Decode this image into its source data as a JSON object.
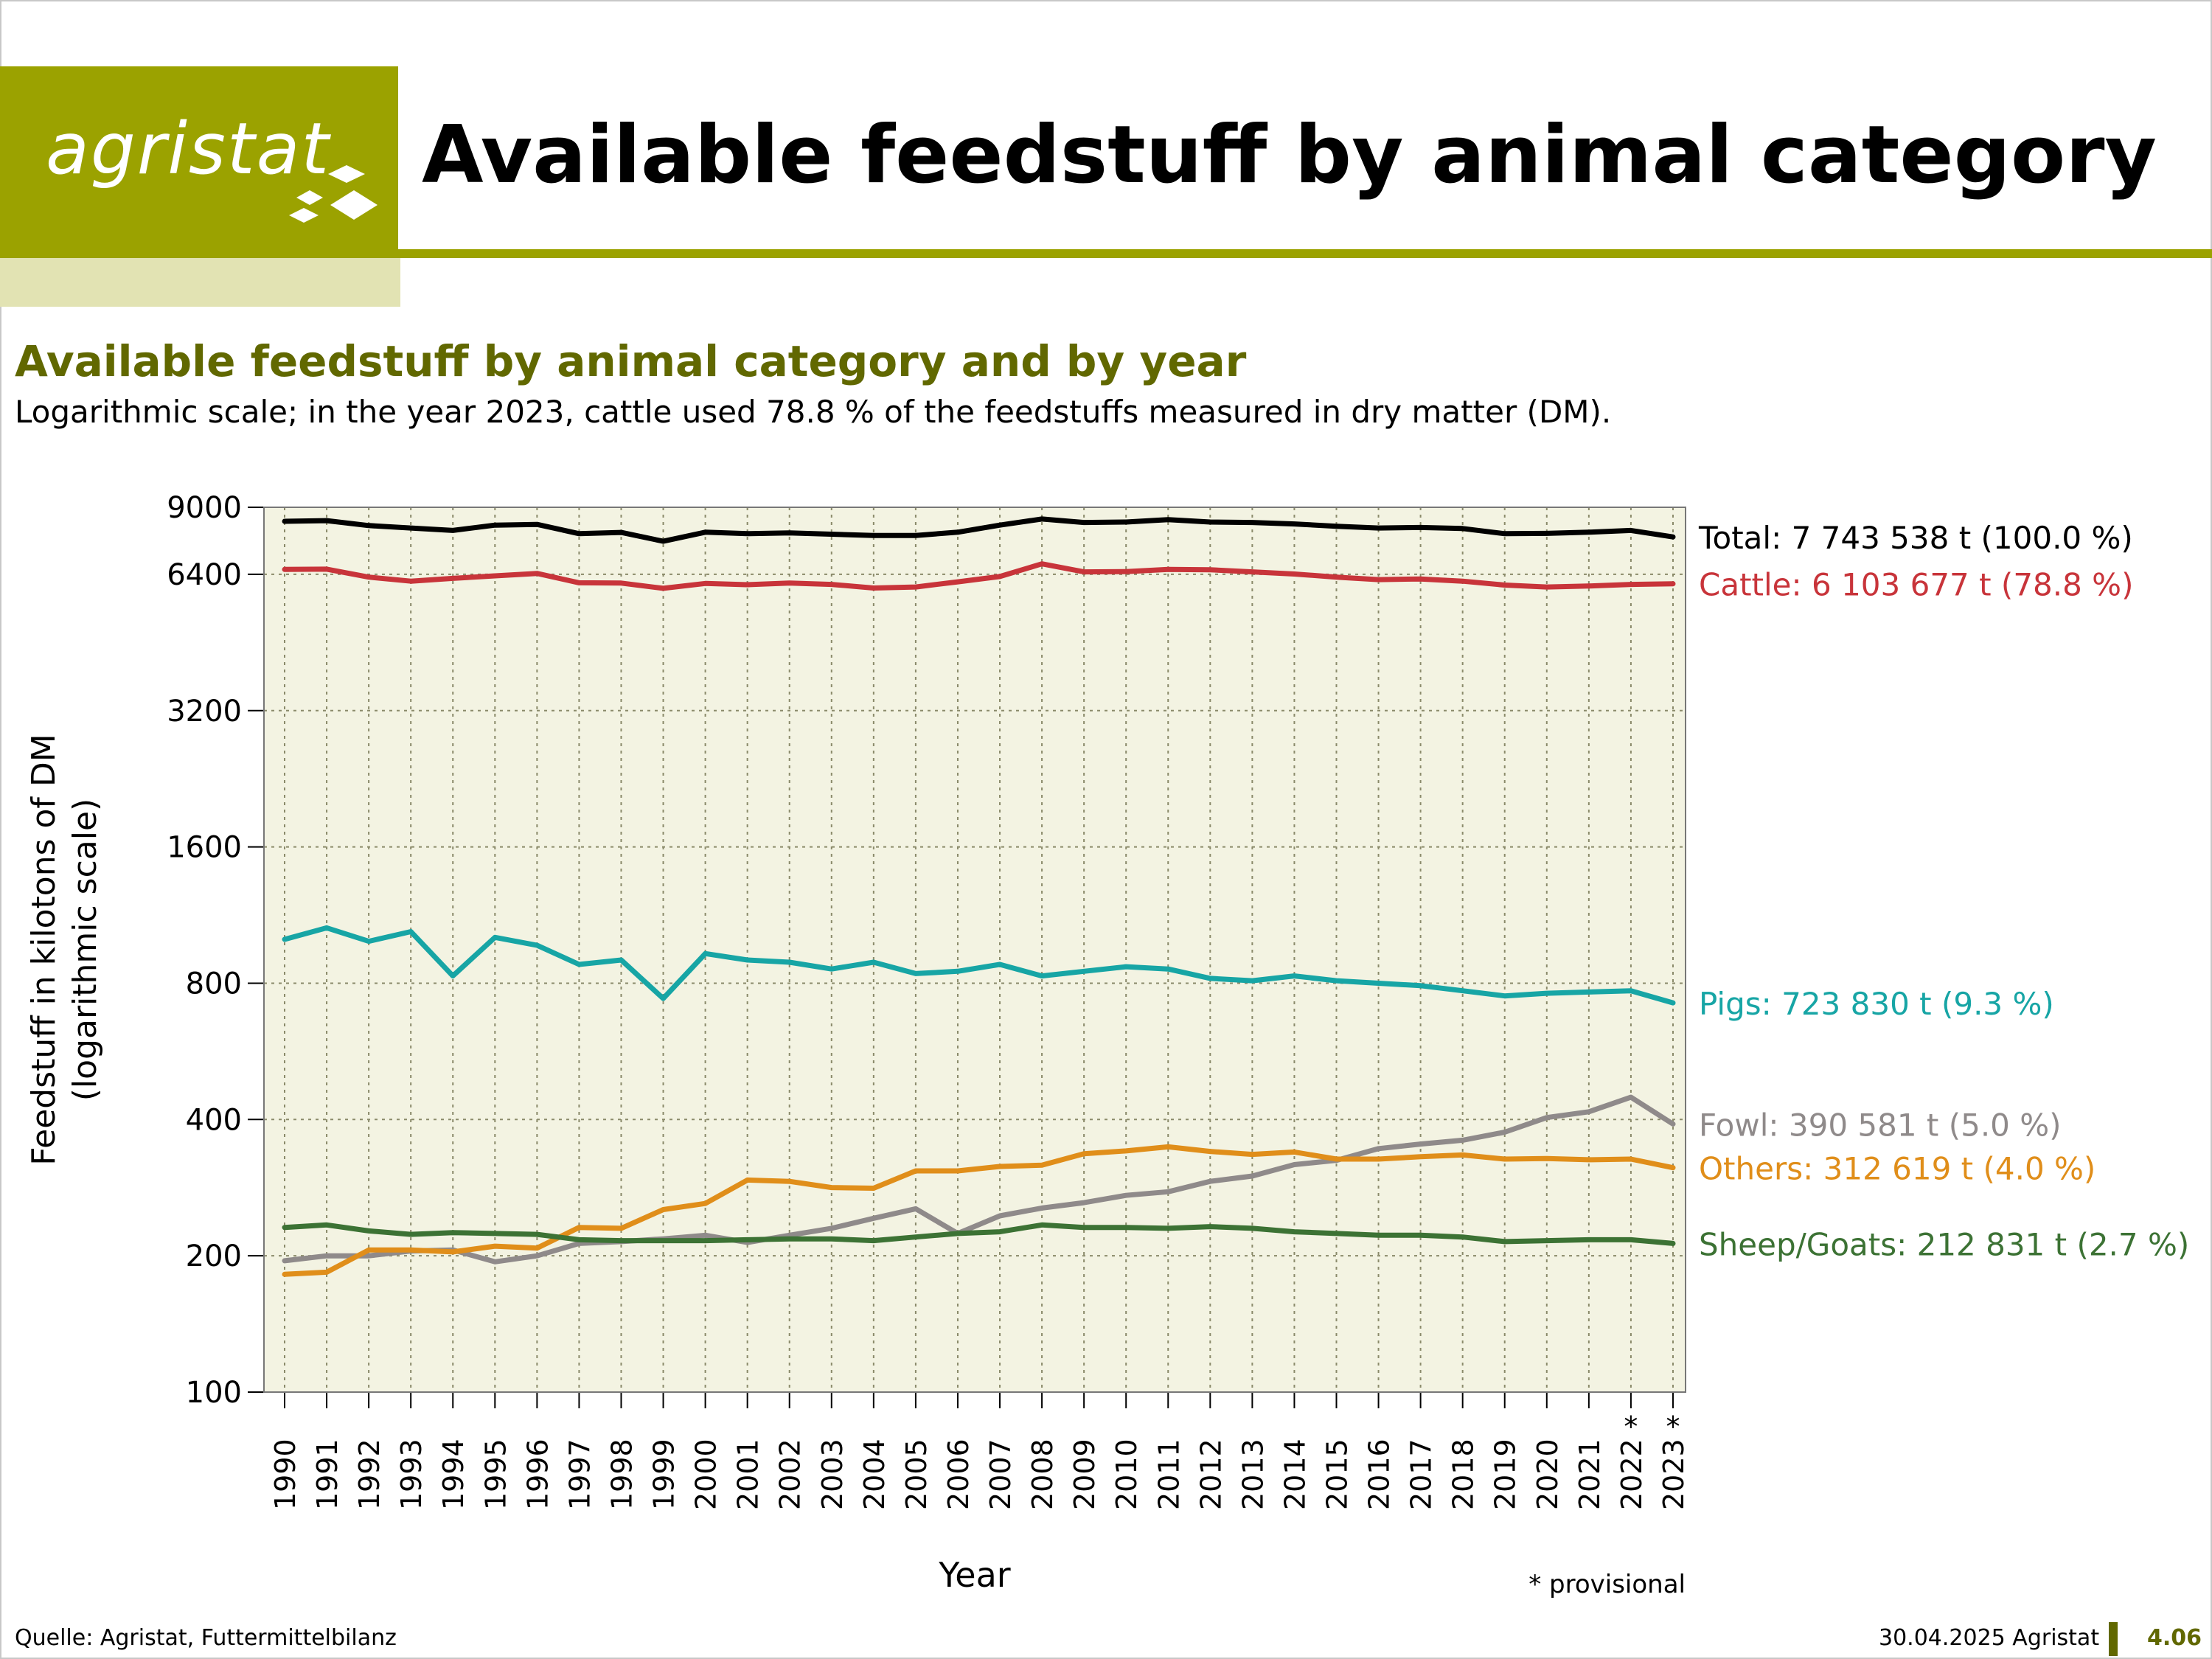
{
  "header": {
    "logo_text": "agristat",
    "title": "Available feedstuff by animal category"
  },
  "subtitle": "Available feedstuff by animal category and by year",
  "description": "Logarithmic scale; in the year 2023, cattle used  78.8 % of the feedstuffs measured in dry matter (DM).",
  "footer": {
    "source": "Quelle: Agristat, Futtermittelbilanz",
    "date": "30.04.2025 Agristat",
    "page": "4.06"
  },
  "colors": {
    "brand": "#9ba200",
    "brand_dark": "#616800",
    "brand_light": "#e2e3b3",
    "plot_bg": "#f3f3e2"
  },
  "chart_data": {
    "type": "line",
    "title": "Available feedstuff by animal category and by year",
    "xlabel": "Year",
    "ylabel": "Feedstuff in kilotons of DM (logarithmic scale)",
    "ylabel_lines": [
      "Feedstuff in kilotons of DM",
      "(logarithmic scale)"
    ],
    "y_scale": "log",
    "ylim": [
      100,
      9000
    ],
    "y_ticks": [
      100,
      200,
      400,
      800,
      1600,
      3200,
      6400,
      9000
    ],
    "grid": true,
    "x": [
      "1990",
      "1991",
      "1992",
      "1993",
      "1994",
      "1995",
      "1996",
      "1997",
      "1998",
      "1999",
      "2000",
      "2001",
      "2002",
      "2003",
      "2004",
      "2005",
      "2006",
      "2007",
      "2008",
      "2009",
      "2010",
      "2011",
      "2012",
      "2013",
      "2014",
      "2015",
      "2016",
      "2017",
      "2018",
      "2019",
      "2020",
      "2021",
      "2022",
      "2023"
    ],
    "provisional_years": [
      "2022",
      "2023"
    ],
    "provisional_marker": "*",
    "provisional_note": "* provisional",
    "series": [
      {
        "name": "Total",
        "label": "Total: 7 743 538 t (100.0 %)",
        "color": "#000000",
        "values": [
          8380,
          8410,
          8200,
          8100,
          8000,
          8220,
          8250,
          7870,
          7920,
          7570,
          7930,
          7870,
          7900,
          7850,
          7800,
          7800,
          7930,
          8220,
          8480,
          8330,
          8350,
          8450,
          8350,
          8330,
          8270,
          8170,
          8100,
          8120,
          8080,
          7870,
          7880,
          7930,
          8000,
          7740
        ]
      },
      {
        "name": "Cattle",
        "label": "Cattle: 6 103 677 t (78.8 %)",
        "color": "#c8343a",
        "values": [
          6560,
          6570,
          6310,
          6180,
          6270,
          6350,
          6430,
          6130,
          6120,
          5960,
          6110,
          6070,
          6120,
          6080,
          5970,
          6000,
          6160,
          6330,
          6750,
          6480,
          6490,
          6560,
          6550,
          6480,
          6410,
          6310,
          6230,
          6250,
          6180,
          6060,
          6000,
          6030,
          6080,
          6100
        ]
      },
      {
        "name": "Pigs",
        "label": "Pigs: 723 830 t (9.3 %)",
        "color": "#17a5a5",
        "values": [
          1000,
          1060,
          990,
          1040,
          830,
          1010,
          970,
          880,
          900,
          740,
          930,
          900,
          890,
          860,
          890,
          840,
          850,
          880,
          830,
          850,
          870,
          860,
          820,
          810,
          830,
          810,
          800,
          790,
          770,
          750,
          760,
          765,
          770,
          724
        ]
      },
      {
        "name": "Fowl",
        "label": "Fowl: 390 581 t (5.0 %)",
        "color": "#8f8a8a",
        "values": [
          195,
          200,
          200,
          205,
          206,
          194,
          200,
          213,
          215,
          218,
          222,
          214,
          222,
          230,
          242,
          254,
          224,
          245,
          255,
          262,
          272,
          277,
          292,
          300,
          318,
          325,
          345,
          353,
          360,
          375,
          404,
          416,
          448,
          391
        ]
      },
      {
        "name": "Others",
        "label": "Others: 312 619 t (4.0 %)",
        "color": "#e08e1a",
        "values": [
          182,
          184,
          206,
          206,
          204,
          210,
          208,
          231,
          230,
          253,
          261,
          294,
          292,
          283,
          282,
          308,
          308,
          315,
          317,
          336,
          341,
          348,
          340,
          335,
          339,
          327,
          327,
          331,
          334,
          327,
          328,
          326,
          327,
          313
        ]
      },
      {
        "name": "Sheep/Goats",
        "label": "Sheep/Goats: 212 831 t (2.7 %)",
        "color": "#3c7234",
        "values": [
          231,
          234,
          227,
          223,
          225,
          224,
          223,
          217,
          216,
          216,
          216,
          217,
          218,
          218,
          216,
          220,
          224,
          226,
          234,
          231,
          231,
          230,
          232,
          230,
          226,
          224,
          222,
          222,
          220,
          215,
          216,
          217,
          217,
          213
        ]
      }
    ]
  }
}
